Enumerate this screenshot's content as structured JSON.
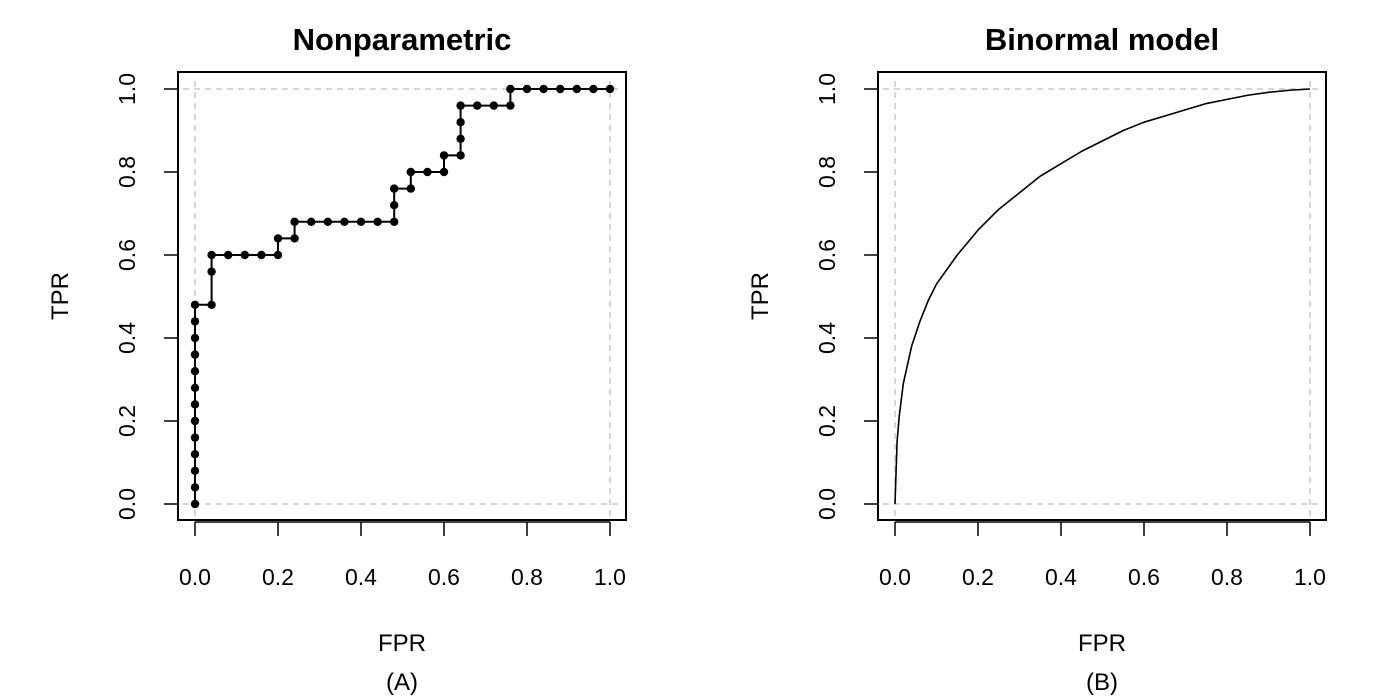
{
  "chart_data": [
    {
      "type": "line",
      "variant": "step-with-markers",
      "title": "Nonparametric",
      "xlabel": "FPR",
      "ylabel": "TPR",
      "caption": "(A)",
      "xlim": [
        0,
        1
      ],
      "ylim": [
        0,
        1
      ],
      "x_ticks": [
        "0.0",
        "0.2",
        "0.4",
        "0.6",
        "0.8",
        "1.0"
      ],
      "y_ticks": [
        "0.0",
        "0.2",
        "0.4",
        "0.6",
        "0.8",
        "1.0"
      ],
      "reference_lines": [
        0,
        1
      ],
      "grid": false,
      "series": [
        {
          "x": [
            0,
            0,
            0,
            0,
            0,
            0,
            0,
            0,
            0,
            0,
            0,
            0,
            0,
            0.04,
            0.04,
            0.04,
            0.08,
            0.12,
            0.16,
            0.2,
            0.2,
            0.24,
            0.24,
            0.28,
            0.32,
            0.36,
            0.4,
            0.44,
            0.48,
            0.48,
            0.48,
            0.52,
            0.52,
            0.56,
            0.6,
            0.6,
            0.64,
            0.64,
            0.64,
            0.64,
            0.68,
            0.72,
            0.76,
            0.76,
            0.8,
            0.84,
            0.88,
            0.92,
            0.96,
            1
          ],
          "y": [
            0,
            0.04,
            0.08,
            0.12,
            0.16,
            0.2,
            0.24,
            0.28,
            0.32,
            0.36,
            0.4,
            0.44,
            0.48,
            0.48,
            0.56,
            0.6,
            0.6,
            0.6,
            0.6,
            0.6,
            0.64,
            0.64,
            0.68,
            0.68,
            0.68,
            0.68,
            0.68,
            0.68,
            0.68,
            0.72,
            0.76,
            0.76,
            0.8,
            0.8,
            0.8,
            0.84,
            0.84,
            0.88,
            0.92,
            0.96,
            0.96,
            0.96,
            0.96,
            1,
            1,
            1,
            1,
            1,
            1,
            1
          ]
        }
      ]
    },
    {
      "type": "line",
      "variant": "smooth-curve",
      "title": "Binormal model",
      "xlabel": "FPR",
      "ylabel": "TPR",
      "caption": "(B)",
      "xlim": [
        0,
        1
      ],
      "ylim": [
        0,
        1
      ],
      "x_ticks": [
        "0.0",
        "0.2",
        "0.4",
        "0.6",
        "0.8",
        "1.0"
      ],
      "y_ticks": [
        "0.0",
        "0.2",
        "0.4",
        "0.6",
        "0.8",
        "1.0"
      ],
      "reference_lines": [
        0,
        1
      ],
      "grid": false,
      "series": [
        {
          "x": [
            0,
            0.005,
            0.01,
            0.02,
            0.04,
            0.06,
            0.08,
            0.1,
            0.15,
            0.2,
            0.25,
            0.3,
            0.35,
            0.4,
            0.45,
            0.5,
            0.55,
            0.6,
            0.65,
            0.7,
            0.75,
            0.8,
            0.85,
            0.9,
            0.95,
            1
          ],
          "y": [
            0,
            0.15,
            0.21,
            0.29,
            0.38,
            0.44,
            0.49,
            0.53,
            0.6,
            0.66,
            0.71,
            0.75,
            0.79,
            0.82,
            0.85,
            0.875,
            0.9,
            0.92,
            0.935,
            0.95,
            0.965,
            0.975,
            0.985,
            0.992,
            0.997,
            1
          ]
        }
      ]
    }
  ],
  "colors": {
    "line": "#000000",
    "reference": "#c8c8c8",
    "frame": "#000000"
  }
}
